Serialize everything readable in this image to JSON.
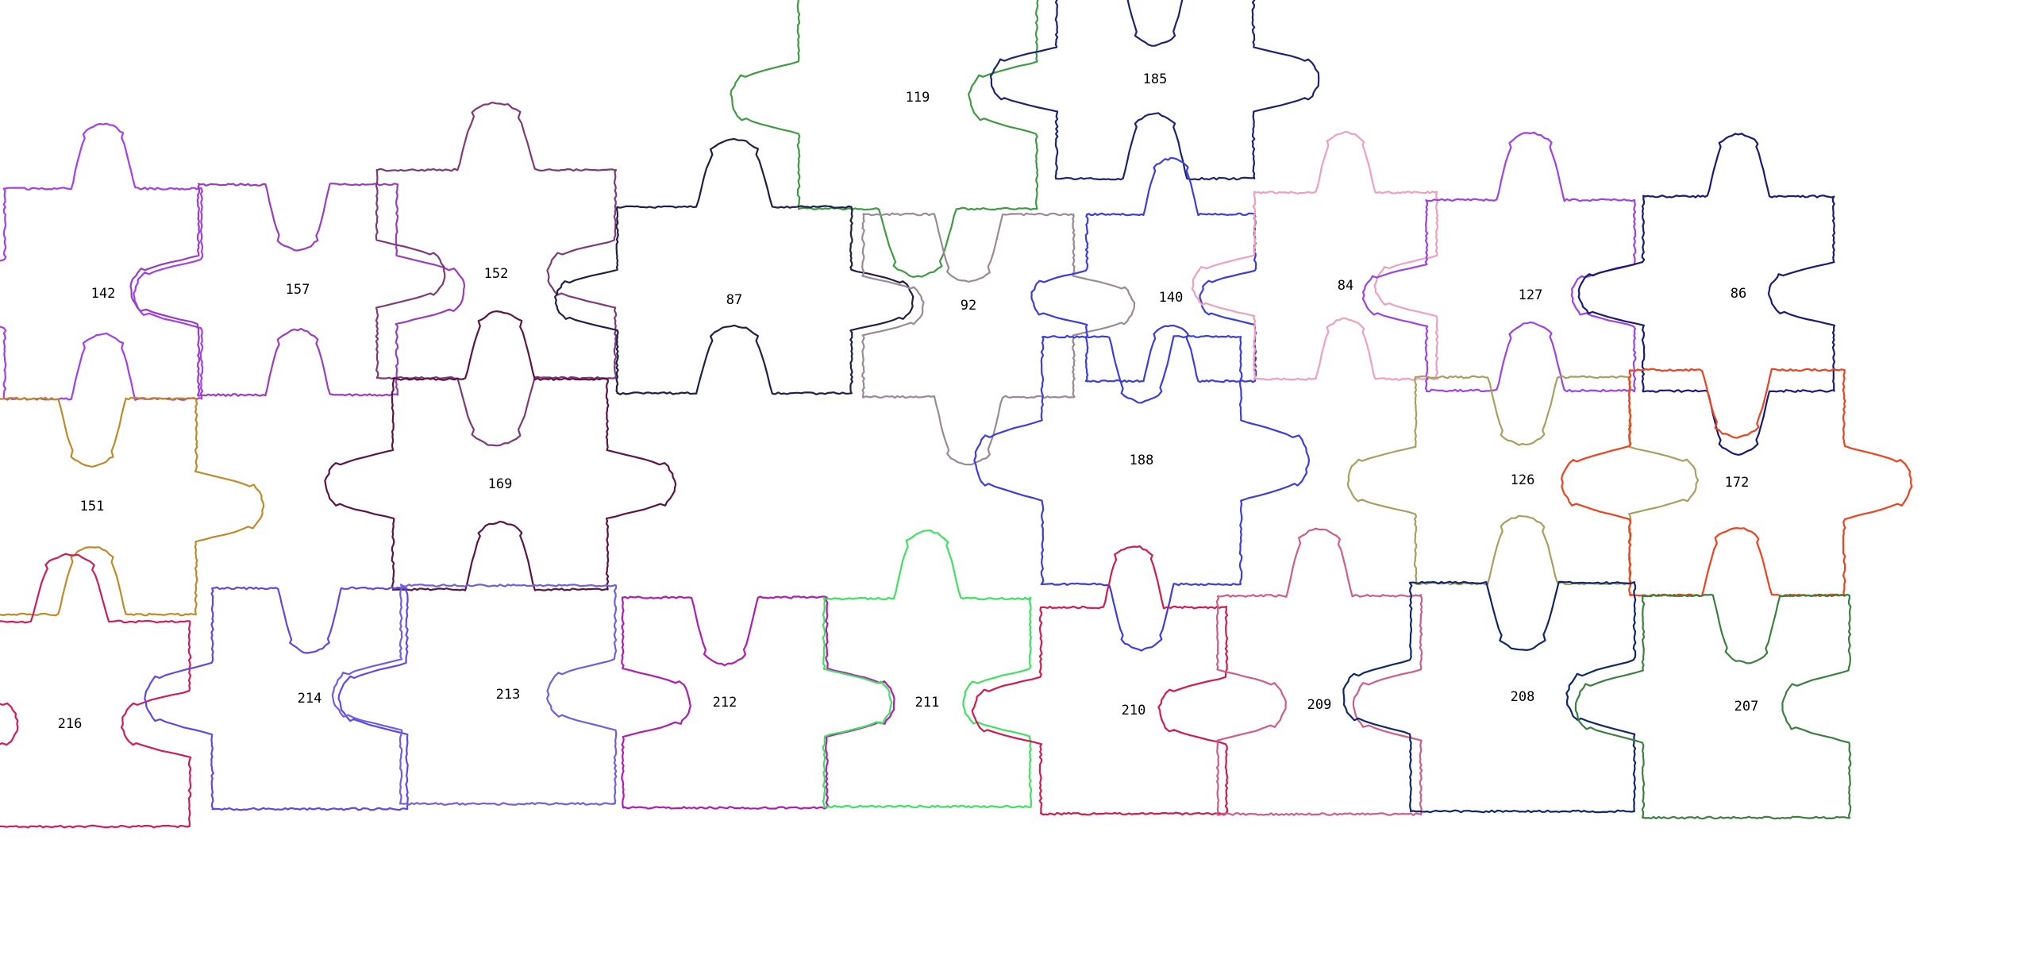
{
  "pieces": [
    {
      "id": "119",
      "color": "#3f9a43",
      "top": "out",
      "right": "in",
      "bottom": "out",
      "left": "out"
    },
    {
      "id": "185",
      "color": "#1c2470",
      "top": "in",
      "right": "out",
      "bottom": "in",
      "left": "out"
    },
    {
      "id": "142",
      "color": "#a23ef0",
      "top": "out",
      "right": "in",
      "bottom": "in",
      "left": "out"
    },
    {
      "id": "157",
      "color": "#9a3cc0",
      "top": "in",
      "right": "out",
      "bottom": "in",
      "left": "out"
    },
    {
      "id": "152",
      "color": "#7e3a78",
      "top": "out",
      "right": "in",
      "bottom": "out",
      "left": "in"
    },
    {
      "id": "87",
      "color": "#1f2046",
      "top": "out",
      "right": "out",
      "bottom": "in",
      "left": "out"
    },
    {
      "id": "92",
      "color": "#9a8a94",
      "top": "in",
      "right": "out",
      "bottom": "out",
      "left": "in"
    },
    {
      "id": "140",
      "color": "#3c3de0",
      "top": "out",
      "right": "in",
      "bottom": "in",
      "left": "out"
    },
    {
      "id": "84",
      "color": "#f0a0be",
      "top": "out",
      "right": "in",
      "bottom": "in",
      "left": "out"
    },
    {
      "id": "127",
      "color": "#9c43e6",
      "top": "out",
      "right": "in",
      "bottom": "in",
      "left": "out"
    },
    {
      "id": "86",
      "color": "#1a1a78",
      "top": "out",
      "right": "in",
      "bottom": "out",
      "left": "out"
    },
    {
      "id": "151",
      "color": "#c08a28",
      "top": "in",
      "right": "out",
      "bottom": "in",
      "left": "out"
    },
    {
      "id": "169",
      "color": "#5c1448",
      "top": "out",
      "right": "out",
      "bottom": "in",
      "left": "out"
    },
    {
      "id": "188",
      "color": "#3c3de0",
      "top": "in",
      "right": "out",
      "bottom": "out",
      "left": "out"
    },
    {
      "id": "126",
      "color": "#a8a060",
      "top": "in",
      "right": "out",
      "bottom": "in",
      "left": "out"
    },
    {
      "id": "172",
      "color": "#f0401c",
      "top": "in",
      "right": "out",
      "bottom": "in",
      "left": "out"
    },
    {
      "id": "216",
      "color": "#d01c5c",
      "top": "out",
      "right": "in",
      "bottom": "flat",
      "left": "in"
    },
    {
      "id": "214",
      "color": "#6048e8",
      "top": "in",
      "right": "in",
      "bottom": "flat",
      "left": "out"
    },
    {
      "id": "213",
      "color": "#7060e0",
      "top": "flat",
      "right": "in",
      "bottom": "flat",
      "left": "out"
    },
    {
      "id": "212",
      "color": "#b01cb0",
      "top": "in",
      "right": "out",
      "bottom": "flat",
      "left": "in"
    },
    {
      "id": "211",
      "color": "#40e060",
      "top": "out",
      "right": "in",
      "bottom": "flat",
      "left": "in"
    },
    {
      "id": "210",
      "color": "#d01c4c",
      "top": "out",
      "right": "in",
      "bottom": "flat",
      "left": "out"
    },
    {
      "id": "209",
      "color": "#d05c88",
      "top": "out",
      "right": "in",
      "bottom": "flat",
      "left": "in"
    },
    {
      "id": "208",
      "color": "#102868",
      "top": "in",
      "right": "in",
      "bottom": "flat",
      "left": "out"
    },
    {
      "id": "207",
      "color": "#3c8040",
      "top": "in",
      "right": "in",
      "bottom": "flat",
      "left": "out"
    }
  ]
}
